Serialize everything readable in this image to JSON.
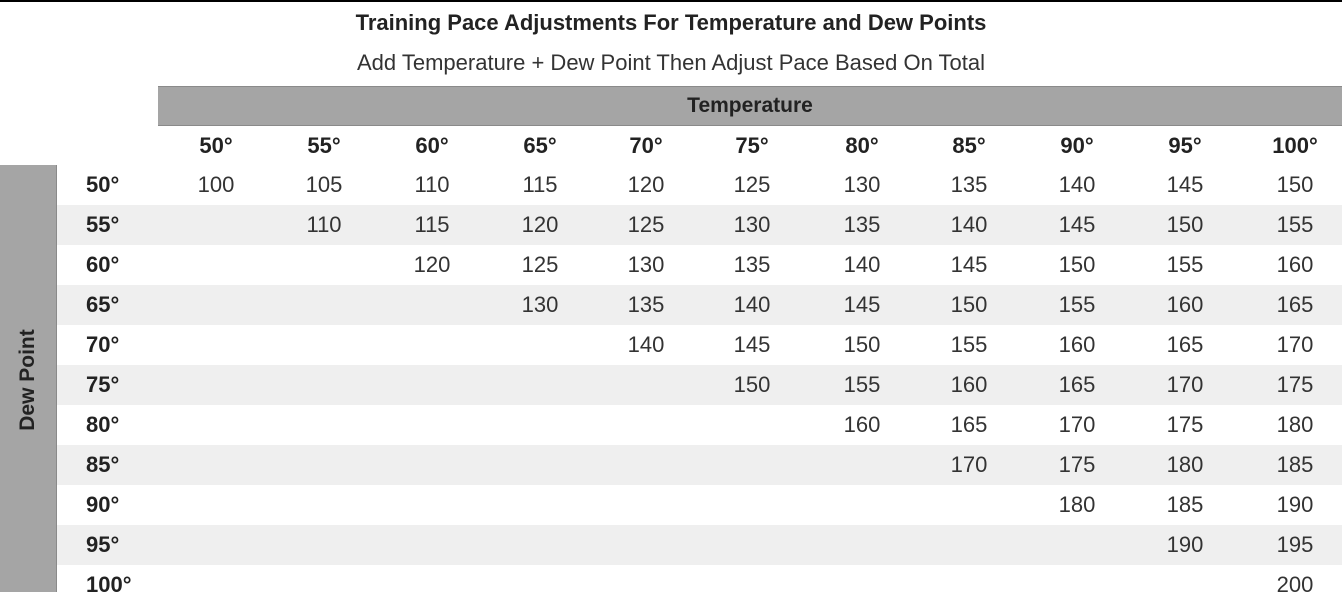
{
  "title": "Training Pace Adjustments For Temperature and Dew Points",
  "subtitle": "Add Temperature + Dew Point Then Adjust Pace Based On Total",
  "column_group_label": "Temperature",
  "row_group_label": "Dew Point",
  "columns": [
    "50°",
    "55°",
    "60°",
    "65°",
    "70°",
    "75°",
    "80°",
    "85°",
    "90°",
    "95°",
    "100°"
  ],
  "rows": [
    {
      "label": "50°",
      "cells": [
        "100",
        "105",
        "110",
        "115",
        "120",
        "125",
        "130",
        "135",
        "140",
        "145",
        "150"
      ]
    },
    {
      "label": "55°",
      "cells": [
        "",
        "110",
        "115",
        "120",
        "125",
        "130",
        "135",
        "140",
        "145",
        "150",
        "155"
      ]
    },
    {
      "label": "60°",
      "cells": [
        "",
        "",
        "120",
        "125",
        "130",
        "135",
        "140",
        "145",
        "150",
        "155",
        "160"
      ]
    },
    {
      "label": "65°",
      "cells": [
        "",
        "",
        "",
        "130",
        "135",
        "140",
        "145",
        "150",
        "155",
        "160",
        "165"
      ]
    },
    {
      "label": "70°",
      "cells": [
        "",
        "",
        "",
        "",
        "140",
        "145",
        "150",
        "155",
        "160",
        "165",
        "170"
      ]
    },
    {
      "label": "75°",
      "cells": [
        "",
        "",
        "",
        "",
        "",
        "150",
        "155",
        "160",
        "165",
        "170",
        "175"
      ]
    },
    {
      "label": "80°",
      "cells": [
        "",
        "",
        "",
        "",
        "",
        "",
        "160",
        "165",
        "170",
        "175",
        "180"
      ]
    },
    {
      "label": "85°",
      "cells": [
        "",
        "",
        "",
        "",
        "",
        "",
        "",
        "170",
        "175",
        "180",
        "185"
      ]
    },
    {
      "label": "90°",
      "cells": [
        "",
        "",
        "",
        "",
        "",
        "",
        "",
        "",
        "180",
        "185",
        "190"
      ]
    },
    {
      "label": "95°",
      "cells": [
        "",
        "",
        "",
        "",
        "",
        "",
        "",
        "",
        "",
        "190",
        "195"
      ]
    },
    {
      "label": "100°",
      "cells": [
        "",
        "",
        "",
        "",
        "",
        "",
        "",
        "",
        "",
        "",
        "200"
      ]
    }
  ],
  "colors": {
    "header_band": "#a5a5a5",
    "row_stripe": "#efefef"
  }
}
